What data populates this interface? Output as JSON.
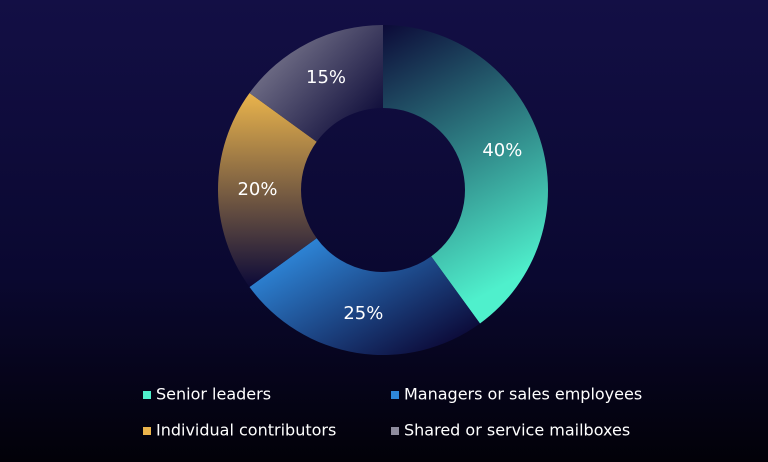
{
  "chart_data": {
    "type": "donut",
    "categories": [
      "Senior leaders",
      "Managers or sales employees",
      "Individual contributors",
      "Shared or service mailboxes"
    ],
    "values": [
      40,
      25,
      20,
      15
    ],
    "value_labels": [
      "40%",
      "25%",
      "20%",
      "15%"
    ],
    "colors": [
      "#4ff0cc",
      "#2e86d8",
      "#eab44c",
      "#8e8c9e"
    ]
  }
}
